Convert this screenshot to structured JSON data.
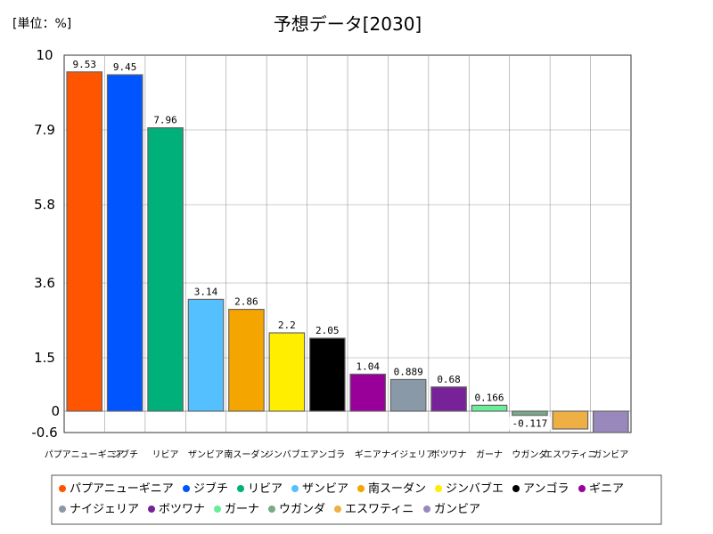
{
  "unit_label": "[単位：%]",
  "chart_data": {
    "type": "bar",
    "title": "予想データ[2030]",
    "categories": [
      "パプアニューギニア",
      "ジブチ",
      "リビア",
      "ザンビア",
      "南スーダン",
      "ジンバブエ",
      "アンゴラ",
      "ギニア",
      "ナイジェリア",
      "ボツワナ",
      "ガーナ",
      "ウガンダ",
      "エスワティニ",
      "ガンビア"
    ],
    "values": [
      9.53,
      9.45,
      7.96,
      3.14,
      2.86,
      2.2,
      2.05,
      1.04,
      0.889,
      0.68,
      0.166,
      -0.117,
      -0.5,
      -0.6
    ],
    "data_labels": [
      "9.53",
      "9.45",
      "7.96",
      "3.14",
      "2.86",
      "2.2",
      "2.05",
      "1.04",
      "0.889",
      "0.68",
      "0.166",
      "-0.117",
      "",
      ""
    ],
    "colors": [
      "#ff5500",
      "#0055ff",
      "#00b07a",
      "#55c0ff",
      "#f5a500",
      "#ffee00",
      "#000000",
      "#990099",
      "#8a99a8",
      "#772299",
      "#66ee99",
      "#77aa88",
      "#eeb044",
      "#9988bb"
    ],
    "yticks": [
      "10",
      "7.9",
      "5.8",
      "3.6",
      "1.5",
      "0",
      "-0.6"
    ],
    "ytick_values": [
      10,
      7.9,
      5.8,
      3.6,
      1.5,
      0,
      -0.6
    ],
    "ylim": [
      -0.6,
      10
    ],
    "grid": true,
    "legend_position": "bottom"
  }
}
